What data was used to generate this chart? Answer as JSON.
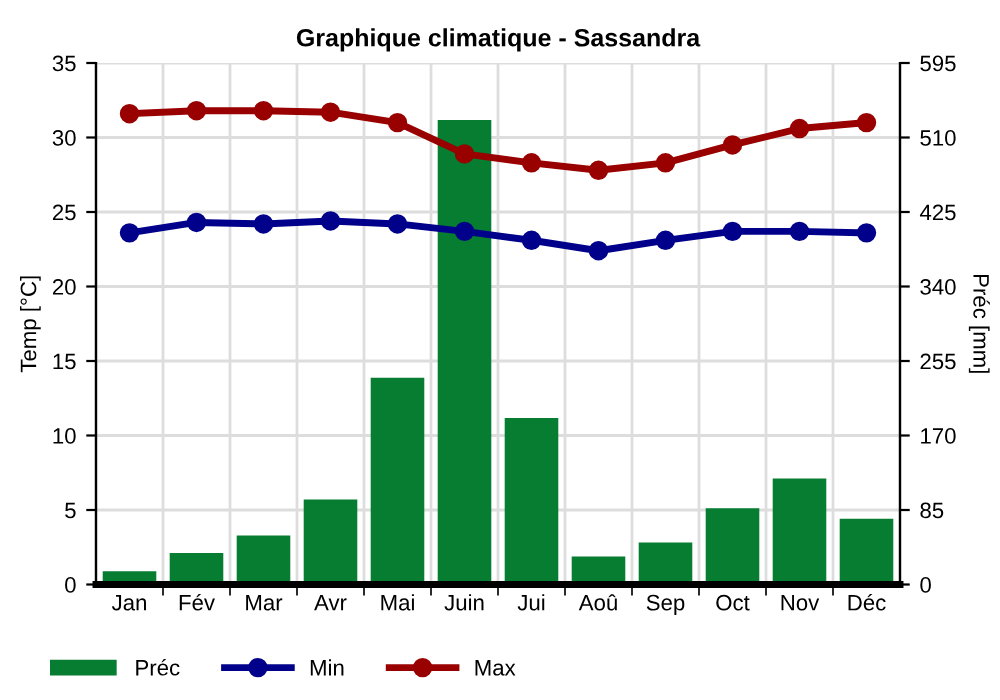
{
  "chart_data": {
    "type": "bar",
    "title": "Graphique climatique - Sassandra",
    "ylabel": "Temp [°C]",
    "y2label": "Préc [mm]",
    "categories": [
      "Jan",
      "Fév",
      "Mar",
      "Avr",
      "Mai",
      "Juin",
      "Jui",
      "Aoû",
      "Sep",
      "Oct",
      "Nov",
      "Déc"
    ],
    "series": [
      {
        "name": "Préc",
        "axis": "y2",
        "color": "#067d31",
        "values": [
          15,
          36,
          56,
          97,
          236,
          530,
          190,
          32,
          48,
          87,
          121,
          75
        ]
      },
      {
        "name": "Min",
        "type": "line",
        "color": "#00008b",
        "values": [
          23.6,
          24.3,
          24.2,
          24.4,
          24.2,
          23.7,
          23.1,
          22.4,
          23.1,
          23.7,
          23.7,
          23.6
        ]
      },
      {
        "name": "Max",
        "type": "line",
        "color": "#990000",
        "values": [
          31.6,
          31.8,
          31.8,
          31.7,
          31.0,
          28.9,
          28.3,
          27.8,
          28.3,
          29.5,
          30.6,
          31.0
        ]
      }
    ],
    "ylim": [
      0,
      35
    ],
    "yticks": [
      0,
      5,
      10,
      15,
      20,
      25,
      30,
      35
    ],
    "y2lim": [
      0,
      595
    ],
    "y2ticks": [
      0,
      85,
      170,
      255,
      340,
      425,
      510,
      595
    ],
    "grid": true,
    "legend": "bottom left",
    "marker": "circle",
    "line_style": "solid"
  }
}
